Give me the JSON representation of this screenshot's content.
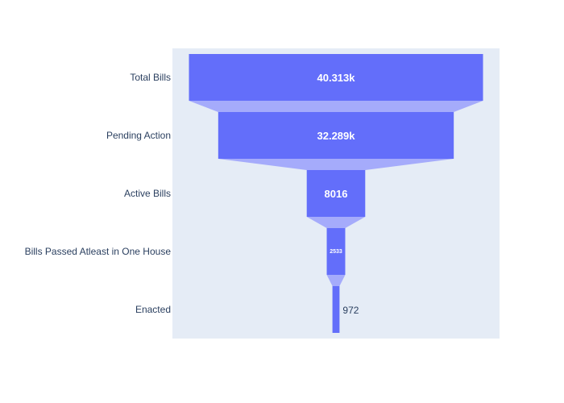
{
  "chart_data": {
    "type": "funnel",
    "categories": [
      "Total Bills",
      "Pending Action",
      "Active Bills",
      "Bills Passed Atleast in One House",
      "Enacted"
    ],
    "values": [
      40313,
      32289,
      8016,
      2533,
      972
    ],
    "value_labels": [
      "40.313k",
      "32.289k",
      "8016",
      "2533",
      "972"
    ],
    "bar_color": "#636efa",
    "connector_color": "#a5abfb",
    "plot_bgcolor": "#e5ecf6",
    "title": "",
    "legend": "none"
  }
}
